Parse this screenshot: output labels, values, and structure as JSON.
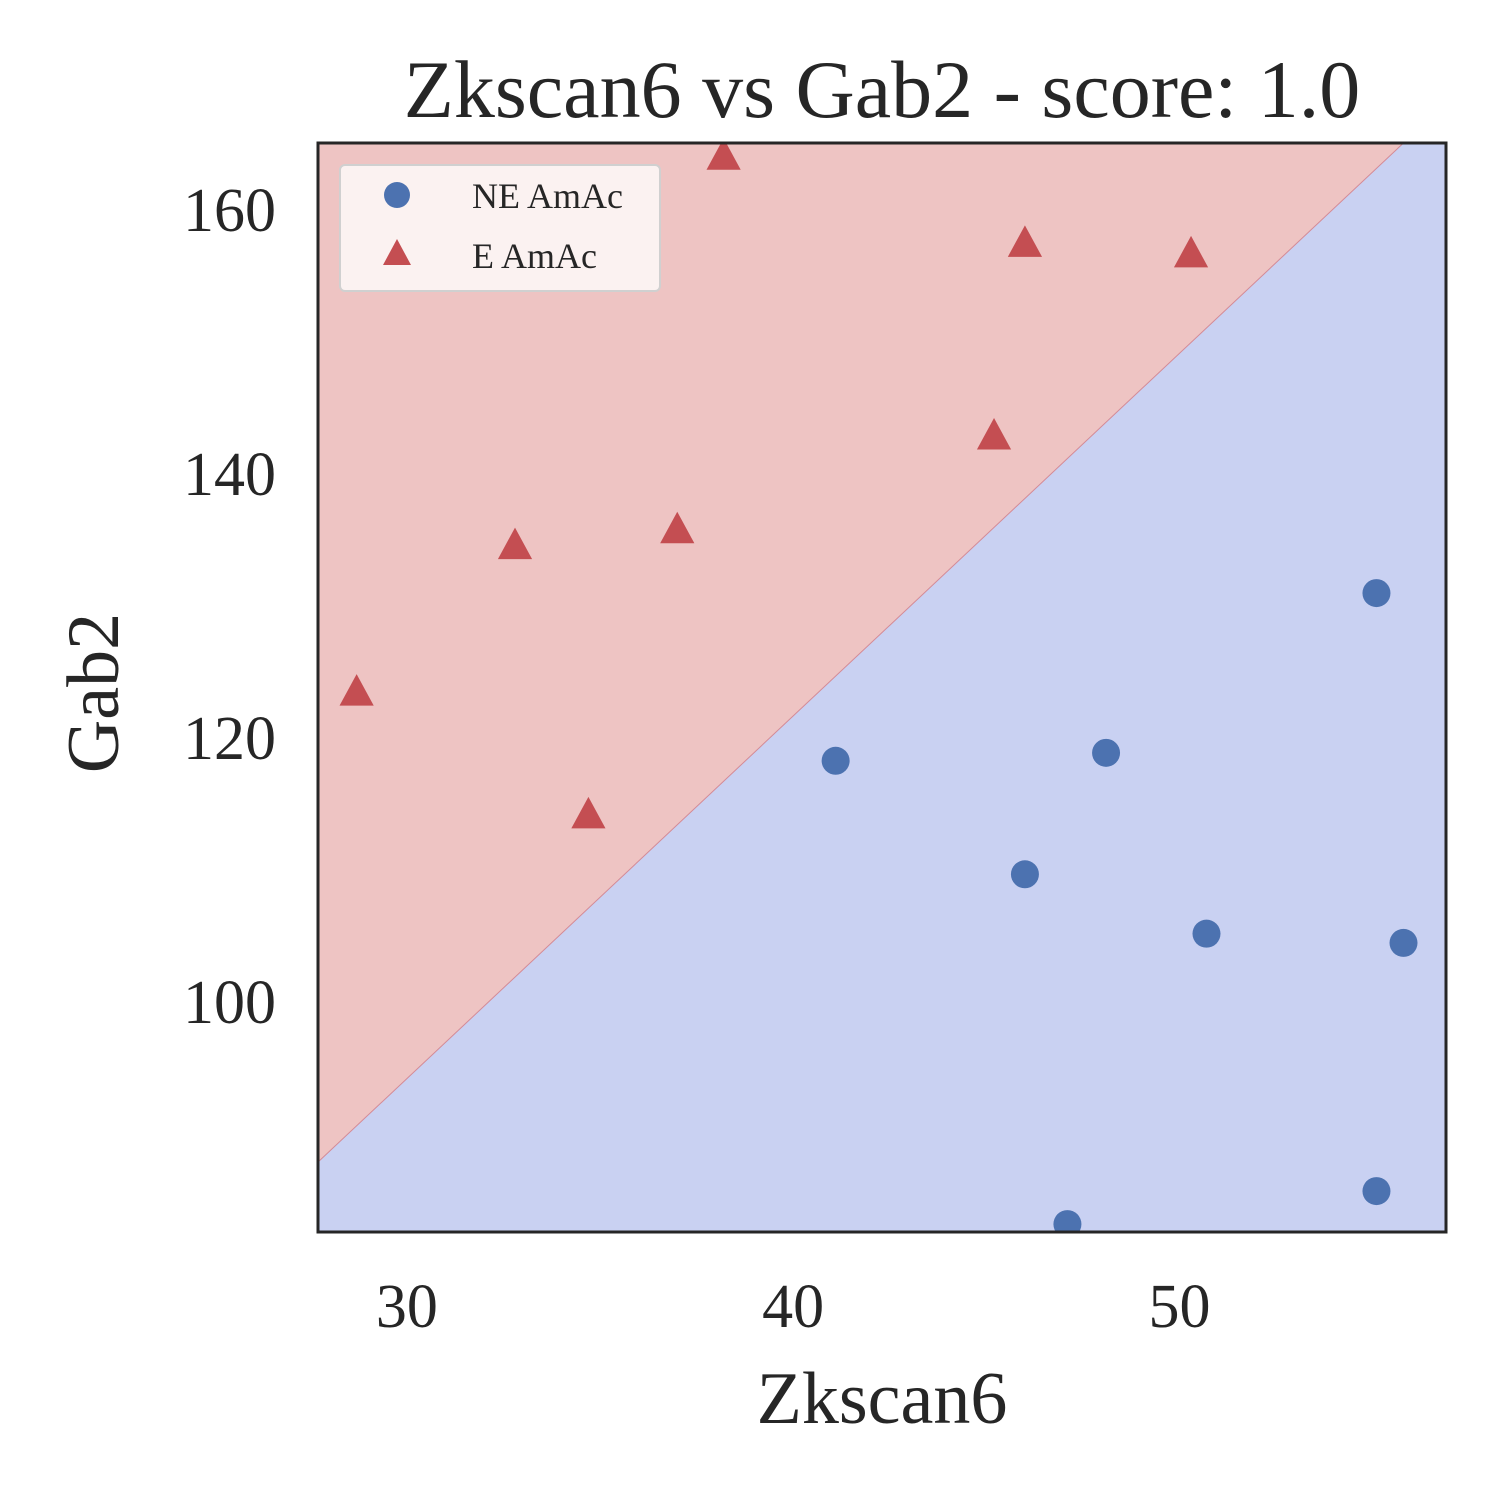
{
  "chart_data": {
    "type": "scatter",
    "title": "Zkscan6 vs Gab2 - score: 1.0",
    "xlabel": "Zkscan6",
    "ylabel": "Gab2",
    "xlim": [
      27.7,
      56.9
    ],
    "ylim": [
      82.5,
      165.0
    ],
    "xticks": [
      "30",
      "40",
      "50"
    ],
    "xtick_values": [
      30,
      40,
      50
    ],
    "yticks": [
      "100",
      "120",
      "140",
      "160"
    ],
    "ytick_values": [
      100,
      120,
      140,
      160
    ],
    "grid": false,
    "legend_position": "upper-left",
    "decision_boundary": {
      "points": [
        [
          27.7,
          87.8
        ],
        [
          55.8,
          165.0
        ]
      ],
      "upper_region_class": "E AmAc",
      "lower_region_class": "NE AmAc",
      "upper_color": "#eec4c3",
      "lower_color": "#c9d1f2"
    },
    "series": [
      {
        "name": "NE AmAc",
        "marker": "circle",
        "color": "#4c72b0",
        "points": [
          [
            41.1,
            118.2
          ],
          [
            46.0,
            109.6
          ],
          [
            48.1,
            118.8
          ],
          [
            47.1,
            83.1
          ],
          [
            50.7,
            105.1
          ],
          [
            55.1,
            130.9
          ],
          [
            55.8,
            104.4
          ],
          [
            55.1,
            85.6
          ]
        ]
      },
      {
        "name": "E AmAc",
        "marker": "triangle",
        "color": "#c44e52",
        "points": [
          [
            28.7,
            123.4
          ],
          [
            32.8,
            134.5
          ],
          [
            34.7,
            114.1
          ],
          [
            37.0,
            135.7
          ],
          [
            38.2,
            164.0
          ],
          [
            45.2,
            142.8
          ],
          [
            46.0,
            157.4
          ],
          [
            50.3,
            156.6
          ]
        ]
      }
    ]
  }
}
